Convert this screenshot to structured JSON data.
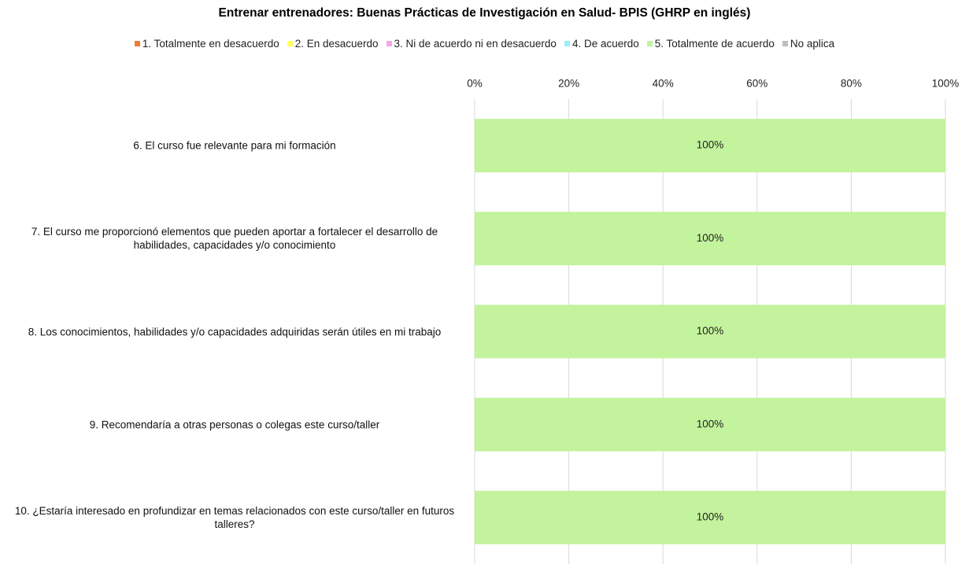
{
  "chart_data": {
    "type": "stacked-barh",
    "title": "Entrenar entrenadores: Buenas Prácticas de Investigación en Salud- BPIS (GHRP en inglés)",
    "categories": [
      "6. El curso fue relevante para mi formación",
      "7. El curso me proporcionó elementos que pueden aportar a fortalecer el desarrollo de habilidades, capacidades y/o conocimiento",
      "8. Los conocimientos, habilidades y/o capacidades adquiridas serán útiles en mi trabajo",
      "9. Recomendaría a otras personas o colegas este curso/taller",
      "10. ¿Estaría interesado en profundizar en temas relacionados con este curso/taller en futuros talleres?"
    ],
    "series": [
      {
        "name": "1. Totalmente en desacuerdo",
        "color": "#ed7d31",
        "values": [
          0,
          0,
          0,
          0,
          0
        ]
      },
      {
        "name": "2. En desacuerdo",
        "color": "#ffff66",
        "values": [
          0,
          0,
          0,
          0,
          0
        ]
      },
      {
        "name": "3. Ni de acuerdo ni en desacuerdo",
        "color": "#f4a6e6",
        "values": [
          0,
          0,
          0,
          0,
          0
        ]
      },
      {
        "name": "4. De acuerdo",
        "color": "#9cf0fb",
        "values": [
          0,
          0,
          0,
          0,
          0
        ]
      },
      {
        "name": "5. Totalmente de acuerdo",
        "color": "#c3f39c",
        "values": [
          100,
          100,
          100,
          100,
          100
        ],
        "value_labels": [
          "100%",
          "100%",
          "100%",
          "100%",
          "100%"
        ]
      },
      {
        "name": "No aplica",
        "color": "#bfbfbf",
        "values": [
          0,
          0,
          0,
          0,
          0
        ]
      }
    ],
    "xlim": [
      0,
      100
    ],
    "xticks": [
      {
        "value": 0,
        "label": "0%"
      },
      {
        "value": 20,
        "label": "20%"
      },
      {
        "value": 40,
        "label": "40%"
      },
      {
        "value": 60,
        "label": "60%"
      },
      {
        "value": 80,
        "label": "80%"
      },
      {
        "value": 100,
        "label": "100%"
      }
    ],
    "grid": true,
    "legend": "top"
  }
}
